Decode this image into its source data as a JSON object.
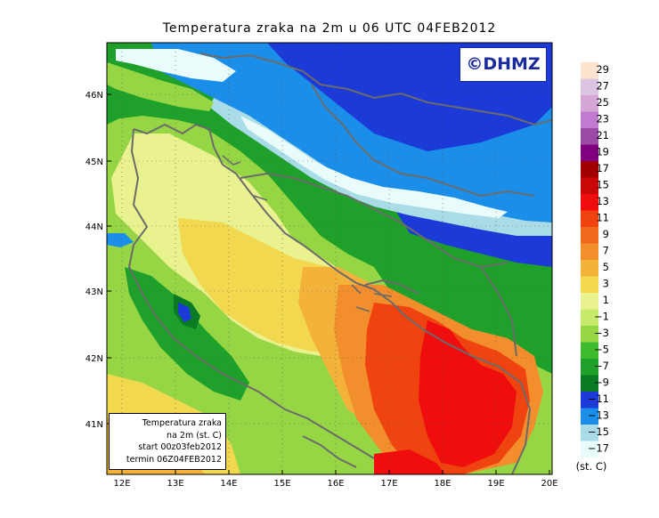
{
  "title": "Temperatura zraka na 2m u 06 UTC 04FEB2012",
  "logo": "©DHMZ",
  "infobox": {
    "line1": "Temperatura zraka",
    "line2": "na 2m (st. C)",
    "line3": "start 00z03feb2012",
    "line4": "termin 06Z04FEB2012"
  },
  "axes": {
    "lon_ticks": [
      "12E",
      "13E",
      "14E",
      "15E",
      "16E",
      "17E",
      "18E",
      "19E",
      "20E"
    ],
    "lat_ticks": [
      "46N",
      "45N",
      "44N",
      "43N",
      "42N",
      "41N"
    ]
  },
  "legend": {
    "unit": "(st. C)",
    "labels": [
      "29",
      "27",
      "25",
      "23",
      "21",
      "19",
      "17",
      "15",
      "13",
      "11",
      "9",
      "7",
      "5",
      "3",
      "1",
      "−1",
      "−3",
      "−5",
      "−7",
      "−9",
      "−11",
      "−13",
      "−15",
      "−17"
    ],
    "colors": [
      "#fde4cf",
      "#dcc4e2",
      "#d6a7d6",
      "#c27ad0",
      "#9b4aa6",
      "#80007f",
      "#a10000",
      "#c90808",
      "#f00d0d",
      "#ef4410",
      "#f06a1e",
      "#f28f2c",
      "#f3b33a",
      "#f2d84e",
      "#eaf28f",
      "#c8ea6a",
      "#96d645",
      "#3ebc2e",
      "#1fa02a",
      "#0a7a25",
      "#1c3ad8",
      "#1a8ee8",
      "#a9dce6",
      "#e9fbfb"
    ]
  },
  "zones": [
    {
      "name": "white-zone",
      "color": "#e9fbfb"
    },
    {
      "name": "lightblue-zone",
      "color": "#a9dce6"
    },
    {
      "name": "blue-zone",
      "color": "#1a8ee8"
    },
    {
      "name": "darkblue-zone",
      "color": "#1c3ad8"
    },
    {
      "name": "green-zone",
      "color": "#1fa02a"
    },
    {
      "name": "lightgreen-zone",
      "color": "#96d645"
    },
    {
      "name": "yellowgreen-zone",
      "color": "#c8ea6a"
    },
    {
      "name": "paleyellow-zone",
      "color": "#eaf28f"
    },
    {
      "name": "yellow-zone",
      "color": "#f2d84e"
    },
    {
      "name": "lightorange-zone",
      "color": "#f3b33a"
    },
    {
      "name": "orange-zone",
      "color": "#f28f2c"
    },
    {
      "name": "darkorange-zone",
      "color": "#ef4410"
    },
    {
      "name": "red-zone",
      "color": "#f00d0d"
    }
  ]
}
